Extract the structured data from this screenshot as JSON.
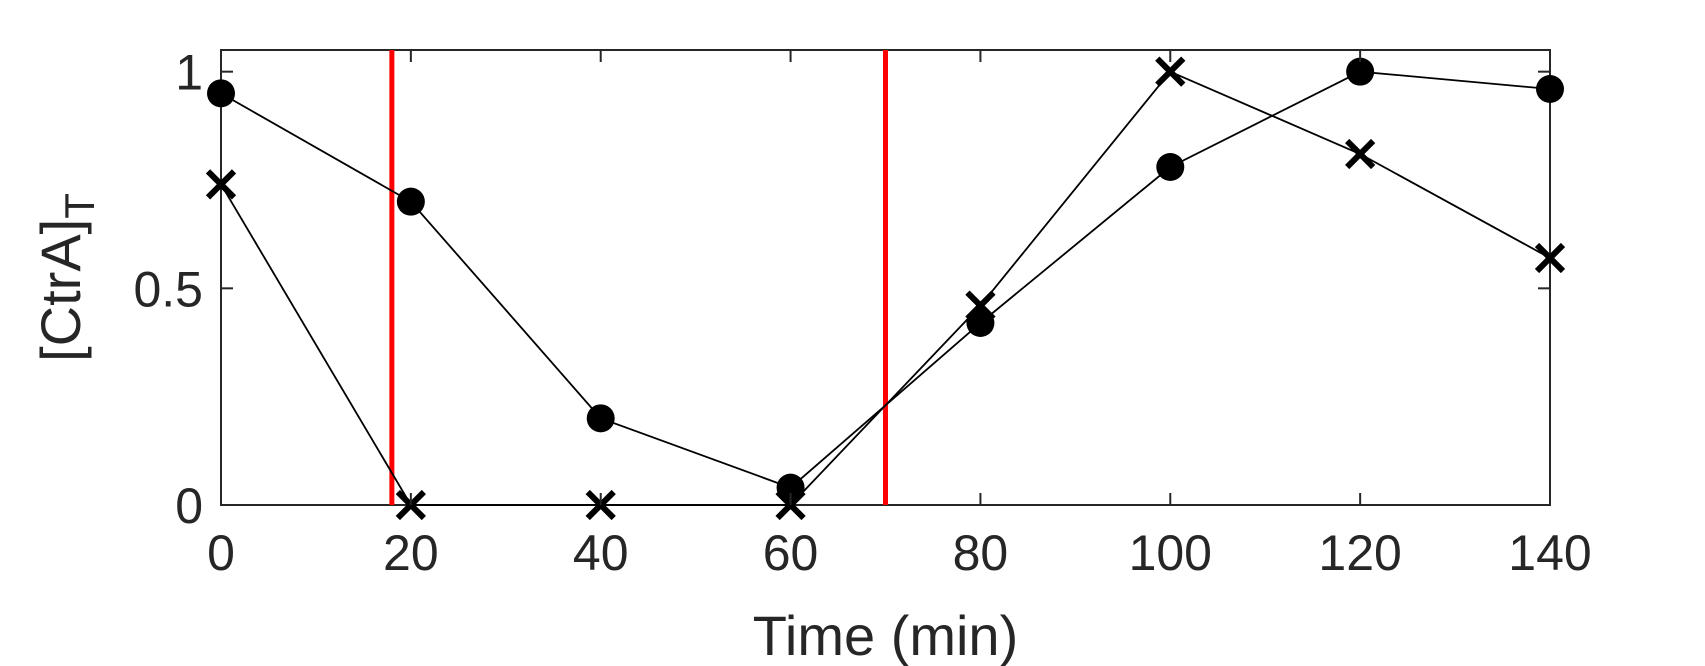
{
  "chart_data": {
    "type": "line",
    "title": "",
    "xlabel": "Time (min)",
    "ylabel_main": "[CtrA]",
    "ylabel_subscript": "T",
    "xlim": [
      0,
      140
    ],
    "ylim": [
      0,
      1.05
    ],
    "xticks": [
      0,
      20,
      40,
      60,
      80,
      100,
      120,
      140
    ],
    "xtick_labels": [
      "0",
      "20",
      "40",
      "60",
      "80",
      "100",
      "120",
      "140"
    ],
    "yticks": [
      0,
      0.5,
      1
    ],
    "ytick_labels": [
      "0",
      "0.5",
      "1"
    ],
    "grid": false,
    "legend": "none",
    "series": [
      {
        "marker": "circle",
        "color": "#000000",
        "x": [
          0,
          20,
          40,
          60,
          80,
          100,
          120,
          140
        ],
        "y": [
          0.95,
          0.7,
          0.2,
          0.04,
          0.42,
          0.78,
          1.0,
          0.96
        ]
      },
      {
        "marker": "x",
        "color": "#000000",
        "x": [
          0,
          20,
          40,
          60,
          80,
          100,
          120,
          140
        ],
        "y": [
          0.74,
          0.0,
          0.0,
          0.0,
          0.46,
          1.0,
          0.81,
          0.57
        ]
      }
    ],
    "vertical_lines": [
      {
        "x": 18,
        "color": "#ff0000"
      },
      {
        "x": 70,
        "color": "#ff0000"
      }
    ]
  }
}
